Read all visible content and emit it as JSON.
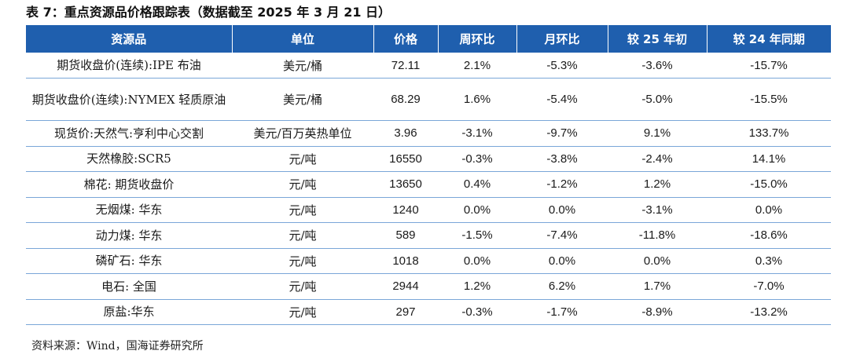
{
  "title": "表 7：重点资源品价格跟踪表（数据截至 2025 年 3 月 21 日）",
  "headers": [
    "资源品",
    "单位",
    "价格",
    "周环比",
    "月环比",
    "较 25 年初",
    "较 24 年同期"
  ],
  "rows": [
    [
      "期货收盘价(连续):IPE 布油",
      "美元/桶",
      "72.11",
      "2.1%",
      "-5.3%",
      "-3.6%",
      "-15.7%"
    ],
    [
      "期货收盘价(连续):NYMEX 轻质原油",
      "美元/桶",
      "68.29",
      "1.6%",
      "-5.4%",
      "-5.0%",
      "-15.5%"
    ],
    [
      "现货价:天然气:亨利中心交割",
      "美元/百万英热单位",
      "3.96",
      "-3.1%",
      "-9.7%",
      "9.1%",
      "133.7%"
    ],
    [
      "天然橡胶:SCR5",
      "元/吨",
      "16550",
      "-0.3%",
      "-3.8%",
      "-2.4%",
      "14.1%"
    ],
    [
      "棉花: 期货收盘价",
      "元/吨",
      "13650",
      "0.4%",
      "-1.2%",
      "1.2%",
      "-15.0%"
    ],
    [
      "无烟煤: 华东",
      "元/吨",
      "1240",
      "0.0%",
      "0.0%",
      "-3.1%",
      "0.0%"
    ],
    [
      "动力煤: 华东",
      "元/吨",
      "589",
      "-1.5%",
      "-7.4%",
      "-11.8%",
      "-18.6%"
    ],
    [
      "磷矿石: 华东",
      "元/吨",
      "1018",
      "0.0%",
      "0.0%",
      "0.0%",
      "0.3%"
    ],
    [
      "电石: 全国",
      "元/吨",
      "2944",
      "1.2%",
      "6.2%",
      "1.7%",
      "-7.0%"
    ],
    [
      "原盐:华东",
      "元/吨",
      "297",
      "-0.3%",
      "-1.7%",
      "-8.9%",
      "-13.2%"
    ]
  ],
  "source": "资料来源：Wind，国海证券研究所",
  "colors": {
    "header_bg": "#1f5fae",
    "header_text": "#ffffff",
    "row_divider": "#7aa6d8"
  }
}
